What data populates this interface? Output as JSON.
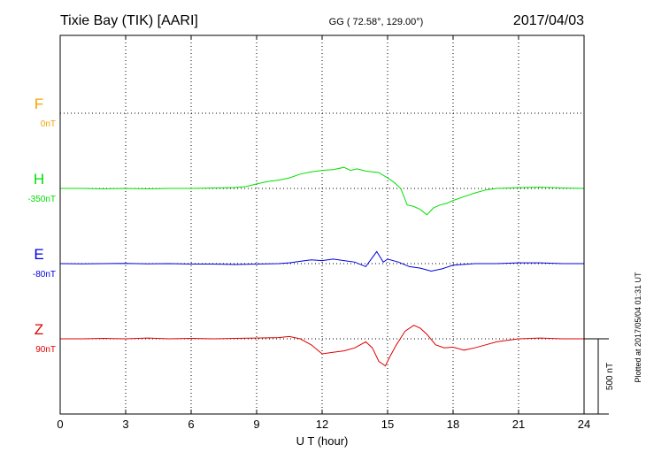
{
  "header": {
    "station": "Tixie Bay (TIK)  [AARI]",
    "coords": "GG ( 72.58°, 129.00°)",
    "date": "2017/04/03"
  },
  "footer_note": "Plotted at 2017/05/04 01:31  UT",
  "chart_data": {
    "type": "line",
    "xlabel": "U T (hour)",
    "xlim": [
      0,
      24
    ],
    "xticks": [
      "0",
      "3",
      "6",
      "9",
      "12",
      "15",
      "18",
      "21",
      "24"
    ],
    "scale_bar_label": "500 nT",
    "scale_bar_nT": 500,
    "grid": true,
    "series": [
      {
        "name": "F",
        "offset_label": "0nT",
        "color": "#f5a300",
        "baseline_nT": 1500,
        "x": [],
        "y": []
      },
      {
        "name": "H",
        "offset_label": "-350nT",
        "color": "#00e000",
        "baseline_nT": 1000,
        "x": [
          0,
          1,
          2,
          3,
          4,
          5,
          6,
          7,
          8,
          8.5,
          9,
          9.5,
          10,
          10.5,
          11,
          11.5,
          12,
          12.5,
          13,
          13.3,
          13.6,
          14,
          14.3,
          14.6,
          15,
          15.3,
          15.6,
          15.9,
          16.2,
          16.5,
          16.8,
          17.1,
          17.4,
          17.7,
          18,
          18.5,
          19,
          19.5,
          20,
          21,
          22,
          23,
          24
        ],
        "y": [
          0,
          0,
          -3,
          0,
          -3,
          0,
          0,
          3,
          6,
          12,
          30,
          45,
          55,
          70,
          95,
          110,
          120,
          125,
          140,
          120,
          130,
          115,
          110,
          105,
          70,
          40,
          0,
          -110,
          -120,
          -140,
          -175,
          -130,
          -110,
          -100,
          -80,
          -55,
          -30,
          -10,
          0,
          5,
          8,
          3,
          0
        ]
      },
      {
        "name": "E",
        "offset_label": "-80nT",
        "color": "#0000e0",
        "baseline_nT": 500,
        "x": [
          0,
          1,
          2,
          3,
          4,
          5,
          6,
          7,
          8,
          9,
          10,
          10.5,
          11,
          11.5,
          12,
          12.5,
          13,
          13.5,
          14,
          14.2,
          14.5,
          14.8,
          15,
          15.5,
          16,
          16.5,
          17,
          17.5,
          18,
          19,
          20,
          21,
          22,
          23,
          24
        ],
        "y": [
          0,
          -2,
          0,
          2,
          -2,
          0,
          -3,
          -3,
          -6,
          -3,
          0,
          5,
          15,
          25,
          20,
          30,
          20,
          10,
          -20,
          20,
          80,
          10,
          30,
          10,
          -20,
          -30,
          -50,
          -35,
          -10,
          0,
          0,
          5,
          5,
          0,
          0
        ]
      },
      {
        "name": "Z",
        "offset_label": "90nT",
        "color": "#e00000",
        "baseline_nT": 0,
        "x": [
          0,
          1,
          2,
          3,
          4,
          5,
          6,
          7,
          8,
          9,
          10,
          10.5,
          11,
          11.5,
          12,
          12.5,
          13,
          13.5,
          14,
          14.3,
          14.6,
          14.9,
          15.1,
          15.4,
          15.8,
          16.2,
          16.5,
          16.8,
          17.2,
          17.6,
          18,
          18.5,
          19,
          19.5,
          20,
          21,
          22,
          23,
          24
        ],
        "y": [
          0,
          0,
          3,
          0,
          5,
          0,
          3,
          0,
          3,
          5,
          8,
          15,
          0,
          -40,
          -100,
          -90,
          -80,
          -60,
          -20,
          -60,
          -150,
          -180,
          -120,
          -40,
          50,
          90,
          70,
          30,
          -40,
          -60,
          -55,
          -75,
          -60,
          -40,
          -20,
          0,
          5,
          0,
          0
        ]
      }
    ]
  }
}
